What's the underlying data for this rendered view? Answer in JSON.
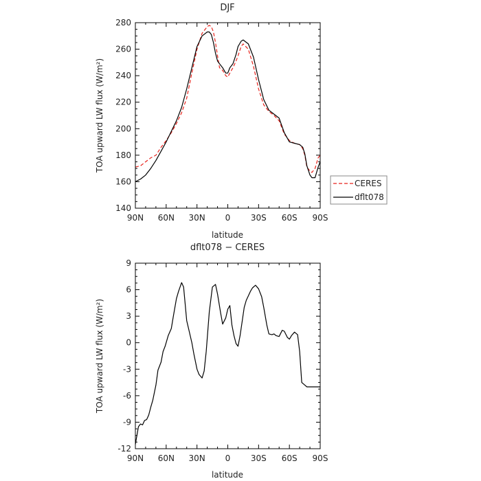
{
  "chart_data": [
    {
      "type": "line",
      "title": "DJF",
      "xlabel": "latitude",
      "ylabel": "TOA upward LW flux (W/m²)",
      "ylim": [
        140,
        280
      ],
      "yticks": [
        140,
        160,
        180,
        200,
        220,
        240,
        260,
        280
      ],
      "xlim": [
        0,
        180
      ],
      "xtick_values": [
        0,
        30,
        60,
        90,
        120,
        150,
        180
      ],
      "xtick_labels": [
        "90N",
        "60N",
        "30N",
        "0",
        "30S",
        "60S",
        "90S"
      ],
      "legend": "right",
      "series": [
        {
          "name": "CERES",
          "color": "#e8221b",
          "dash": true,
          "x": [
            0,
            5,
            10,
            15,
            20,
            25,
            30,
            35,
            40,
            45,
            50,
            55,
            60,
            65,
            70,
            72,
            74,
            76,
            78,
            80,
            82,
            85,
            88,
            90,
            92,
            95,
            98,
            100,
            103,
            105,
            110,
            115,
            120,
            125,
            130,
            135,
            140,
            145,
            150,
            155,
            160,
            163,
            165,
            167,
            170,
            172,
            175,
            178,
            180
          ],
          "y": [
            171,
            172,
            175,
            178,
            180,
            186,
            191,
            197,
            204,
            212,
            223,
            242,
            260,
            272,
            277,
            278,
            277,
            273,
            265,
            255,
            246,
            244,
            240,
            239,
            242,
            246,
            251,
            255,
            262,
            264,
            260,
            247,
            230,
            218,
            213,
            210,
            206,
            196,
            191,
            189,
            188,
            185,
            180,
            171,
            168,
            167,
            170,
            178,
            180
          ]
        },
        {
          "name": "dflt078",
          "color": "#000000",
          "dash": false,
          "x": [
            0,
            5,
            10,
            15,
            20,
            25,
            30,
            35,
            40,
            45,
            50,
            55,
            60,
            65,
            70,
            72,
            74,
            76,
            78,
            80,
            82,
            85,
            88,
            90,
            92,
            95,
            98,
            100,
            103,
            105,
            110,
            115,
            120,
            125,
            130,
            135,
            140,
            145,
            150,
            155,
            160,
            163,
            165,
            167,
            170,
            172,
            175,
            178,
            180
          ],
          "y": [
            160,
            162,
            165,
            170,
            176,
            183,
            190,
            198,
            206,
            216,
            230,
            246,
            262,
            270,
            273,
            273,
            271,
            265,
            257,
            251,
            249,
            246,
            242,
            242,
            246,
            249,
            256,
            262,
            266,
            267,
            264,
            254,
            237,
            222,
            214,
            211,
            208,
            197,
            190,
            189,
            188,
            186,
            181,
            172,
            165,
            163,
            163,
            171,
            175
          ]
        }
      ]
    },
    {
      "type": "line",
      "title": "dflt078 − CERES",
      "xlabel": "latitude",
      "ylabel": "TOA upward LW flux (W/m²)",
      "ylim": [
        -12,
        9
      ],
      "yticks": [
        -12,
        -9,
        -6,
        -3,
        0,
        3,
        6,
        9
      ],
      "xlim": [
        0,
        180
      ],
      "xtick_values": [
        0,
        30,
        60,
        90,
        120,
        150,
        180
      ],
      "xtick_labels": [
        "90N",
        "60N",
        "30N",
        "0",
        "30S",
        "60S",
        "90S"
      ],
      "series": [
        {
          "name": "dflt078",
          "color": "#000000",
          "dash": false,
          "x": [
            0,
            3,
            5,
            7,
            9,
            11,
            13,
            15,
            17,
            20,
            22,
            25,
            27,
            29,
            32,
            35,
            37,
            40,
            42,
            45,
            47,
            50,
            52,
            55,
            57,
            60,
            62,
            65,
            67,
            69,
            72,
            75,
            78,
            80,
            83,
            85,
            88,
            90,
            92,
            94,
            96,
            98,
            100,
            102,
            104,
            106,
            108,
            110,
            112,
            114,
            117,
            120,
            123,
            125,
            128,
            130,
            133,
            135,
            137,
            140,
            143,
            145,
            148,
            150,
            152,
            155,
            158,
            160,
            162,
            165,
            167,
            170,
            172,
            174,
            176,
            178,
            180
          ],
          "y": [
            -11.5,
            -9.5,
            -9.2,
            -9.3,
            -8.8,
            -8.7,
            -8.2,
            -7.3,
            -6.5,
            -4.8,
            -3.1,
            -2.2,
            -1.0,
            -0.4,
            0.8,
            1.6,
            3.0,
            5.0,
            5.8,
            6.8,
            6.3,
            2.5,
            1.5,
            0.0,
            -1.3,
            -3.0,
            -3.6,
            -4.0,
            -3.2,
            -1.0,
            3.5,
            6.3,
            6.6,
            5.5,
            3.4,
            2.1,
            2.8,
            3.8,
            4.2,
            2.0,
            0.8,
            -0.1,
            -0.4,
            0.8,
            2.4,
            4.0,
            4.8,
            5.3,
            5.8,
            6.2,
            6.5,
            6.1,
            5.2,
            4.0,
            2.0,
            1.0,
            0.9,
            1.0,
            0.8,
            0.7,
            1.4,
            1.3,
            0.6,
            0.4,
            0.8,
            1.2,
            0.9,
            -1.0,
            -4.5,
            -4.8,
            -5.0,
            -5.0,
            -5.0,
            -5.0,
            -5.0,
            -5.0,
            -5.0
          ]
        }
      ]
    }
  ]
}
